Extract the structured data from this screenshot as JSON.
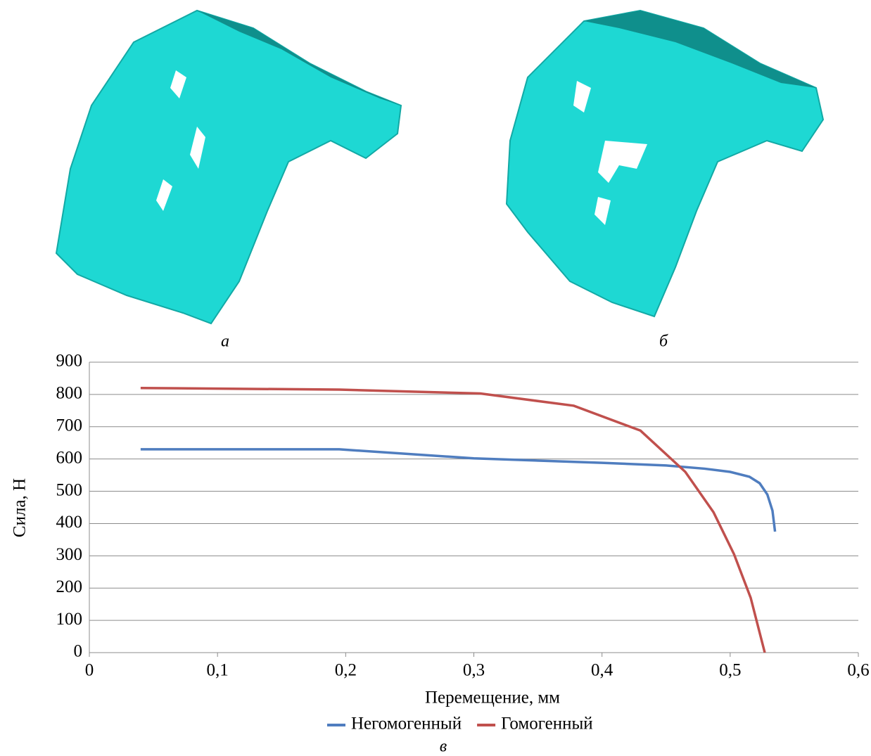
{
  "figure": {
    "captions": [
      "а",
      "б",
      "в"
    ]
  },
  "chart_data": {
    "type": "line",
    "xlabel": "Перемещение, мм",
    "ylabel": "Сила, Н",
    "xlim": [
      0,
      0.6
    ],
    "ylim": [
      0,
      900
    ],
    "xticks": [
      0,
      {
        "value": 0.1,
        "label": "0,1"
      },
      {
        "value": 0.2,
        "label": "0,2"
      },
      {
        "value": 0.3,
        "label": "0,3"
      },
      {
        "value": 0.4,
        "label": "0,4"
      },
      {
        "value": 0.5,
        "label": "0,5"
      },
      {
        "value": 0.6,
        "label": "0,6"
      }
    ],
    "yticks": [
      0,
      100,
      200,
      300,
      400,
      500,
      600,
      700,
      800,
      900
    ],
    "grid": true,
    "legend": "bottom",
    "series": [
      {
        "name": "Негомогенный",
        "color": "#4f7dbf",
        "x": [
          0.04,
          0.195,
          0.3,
          0.4,
          0.45,
          0.48,
          0.5,
          0.515,
          0.523,
          0.529,
          0.533,
          0.535
        ],
        "values": [
          630,
          630,
          602,
          588,
          580,
          570,
          560,
          545,
          525,
          490,
          440,
          375
        ]
      },
      {
        "name": "Гомогенный",
        "color": "#c0504d",
        "x": [
          0.04,
          0.195,
          0.305,
          0.378,
          0.43,
          0.465,
          0.487,
          0.503,
          0.516,
          0.527
        ],
        "values": [
          820,
          815,
          803,
          765,
          688,
          560,
          435,
          305,
          170,
          0
        ]
      }
    ]
  }
}
